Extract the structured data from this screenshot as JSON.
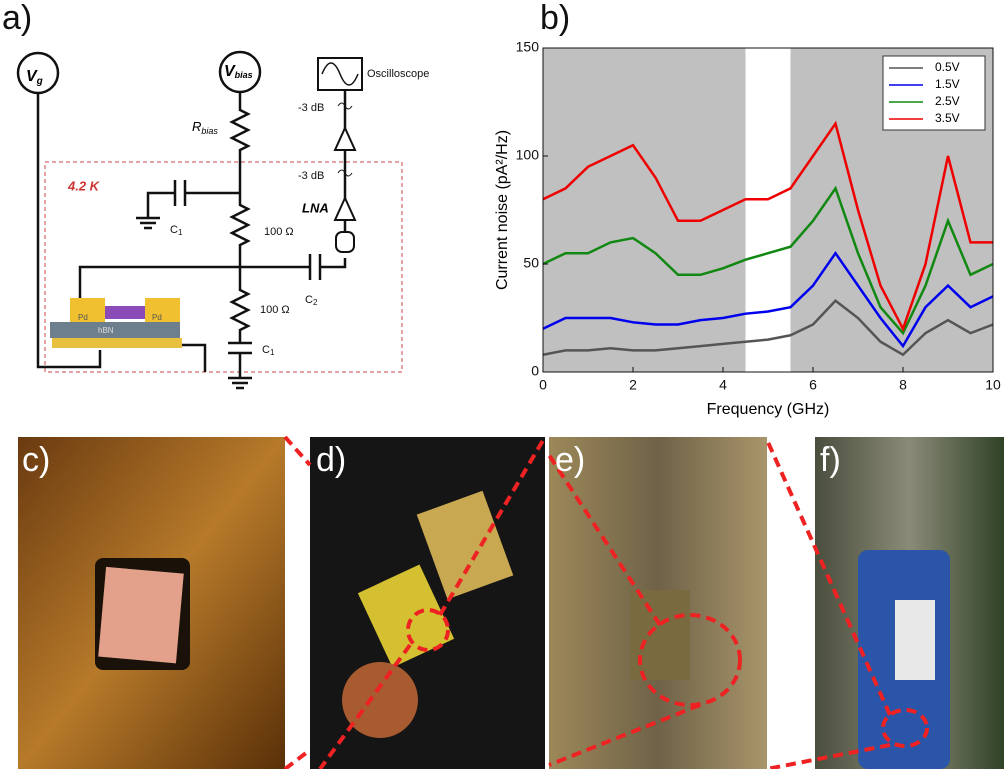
{
  "panels": {
    "a": "a)",
    "b": "b)",
    "c": "c)",
    "d": "d)",
    "e": "e)",
    "f": "f)"
  },
  "circuit": {
    "vg_main": "V",
    "vg_sub": "g",
    "vbias_main": "V",
    "vbias_sub": "bias",
    "rbias_main": "R",
    "rbias_sub": "bias",
    "oscilloscope": "Oscilloscope",
    "att1": "-3 dB",
    "att2": "-3 dB",
    "lna": "LNA",
    "temp": "4.2 K",
    "c1_top": "C",
    "c1_top_sub": "1",
    "c1_bot": "C",
    "c1_bot_sub": "1",
    "r1": "100 Ω",
    "r2": "100 Ω",
    "c2": "C",
    "c2_sub": "2",
    "pd1": "Pd",
    "pd2": "Pd",
    "hbn": "hBN"
  },
  "chart_data": {
    "type": "line",
    "xlabel": "Frequency (GHz)",
    "ylabel": "Current noise (pA²/Hz)",
    "xlim": [
      0,
      10
    ],
    "ylim": [
      0,
      150
    ],
    "xticks": [
      0,
      2,
      4,
      6,
      8,
      10
    ],
    "yticks": [
      0,
      50,
      100,
      150
    ],
    "shaded_regions": [
      [
        0,
        4.5
      ],
      [
        5.5,
        10
      ]
    ],
    "legend": "upper right",
    "x": [
      0,
      0.5,
      1,
      1.5,
      2,
      2.5,
      3,
      3.5,
      4,
      4.5,
      5,
      5.5,
      6,
      6.5,
      7,
      7.5,
      8,
      8.5,
      9,
      9.5,
      10
    ],
    "series": [
      {
        "name": "0.5V",
        "color": "#555555",
        "values": [
          8,
          10,
          10,
          11,
          10,
          10,
          11,
          12,
          13,
          14,
          15,
          17,
          22,
          33,
          25,
          14,
          8,
          18,
          24,
          18,
          22
        ]
      },
      {
        "name": "1.5V",
        "color": "#0000ee",
        "values": [
          20,
          25,
          25,
          25,
          23,
          22,
          22,
          24,
          25,
          27,
          28,
          30,
          40,
          55,
          40,
          25,
          12,
          30,
          40,
          30,
          35
        ]
      },
      {
        "name": "2.5V",
        "color": "#118811",
        "values": [
          50,
          55,
          55,
          60,
          62,
          55,
          45,
          45,
          48,
          52,
          55,
          58,
          70,
          85,
          55,
          30,
          18,
          40,
          70,
          45,
          50
        ]
      },
      {
        "name": "3.5V",
        "color": "#ee0000",
        "values": [
          80,
          85,
          95,
          100,
          105,
          90,
          70,
          70,
          75,
          80,
          80,
          85,
          100,
          115,
          75,
          40,
          20,
          50,
          100,
          60,
          60
        ]
      }
    ]
  }
}
